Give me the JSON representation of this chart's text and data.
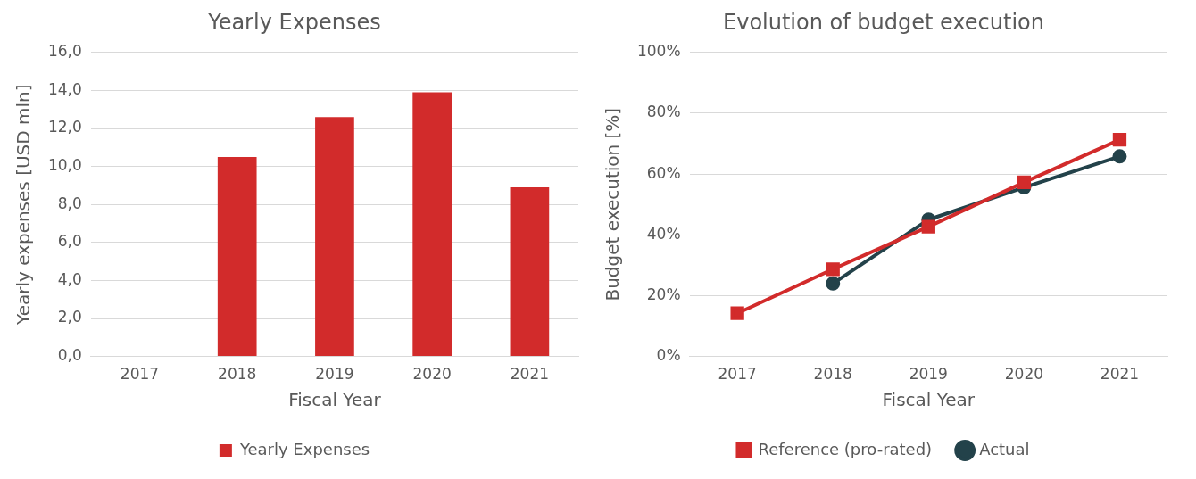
{
  "chart_data": [
    {
      "type": "bar",
      "title": "Yearly Expenses",
      "xlabel": "Fiscal Year",
      "ylabel": "Yearly expenses [USD mln]",
      "categories": [
        "2017",
        "2018",
        "2019",
        "2020",
        "2021"
      ],
      "series": [
        {
          "name": "Yearly Expenses",
          "color": "#d22b2b",
          "values": [
            null,
            10.5,
            12.6,
            13.9,
            8.9
          ]
        }
      ],
      "ylim": [
        0,
        16
      ],
      "yticks": [
        {
          "value": 0,
          "label": "0,0"
        },
        {
          "value": 2,
          "label": "2,0"
        },
        {
          "value": 4,
          "label": "4,0"
        },
        {
          "value": 6,
          "label": "6,0"
        },
        {
          "value": 8,
          "label": "8,0"
        },
        {
          "value": 10,
          "label": "10,0"
        },
        {
          "value": 12,
          "label": "12,0"
        },
        {
          "value": 14,
          "label": "14,0"
        },
        {
          "value": 16,
          "label": "16,0"
        }
      ],
      "grid": "y",
      "legend": "bottom"
    },
    {
      "type": "line",
      "title": "Evolution of budget execution",
      "xlabel": "Fiscal Year",
      "ylabel": "Budget execution [%]",
      "categories": [
        "2017",
        "2018",
        "2019",
        "2020",
        "2021"
      ],
      "series": [
        {
          "name": "Actual",
          "color": "#23424a",
          "marker": "circle",
          "values": [
            null,
            24.0,
            45.0,
            55.6,
            65.8
          ]
        },
        {
          "name": "Reference (pro-rated)",
          "color": "#d22b2b",
          "marker": "square",
          "values": [
            14.2,
            28.7,
            42.7,
            57.3,
            71.3
          ]
        }
      ],
      "ylim": [
        0,
        100
      ],
      "yticks": [
        {
          "value": 0,
          "label": "0%"
        },
        {
          "value": 20,
          "label": "20%"
        },
        {
          "value": 40,
          "label": "40%"
        },
        {
          "value": 60,
          "label": "60%"
        },
        {
          "value": 80,
          "label": "80%"
        },
        {
          "value": 100,
          "label": "100%"
        }
      ],
      "grid": "y",
      "legend": "bottom"
    }
  ]
}
